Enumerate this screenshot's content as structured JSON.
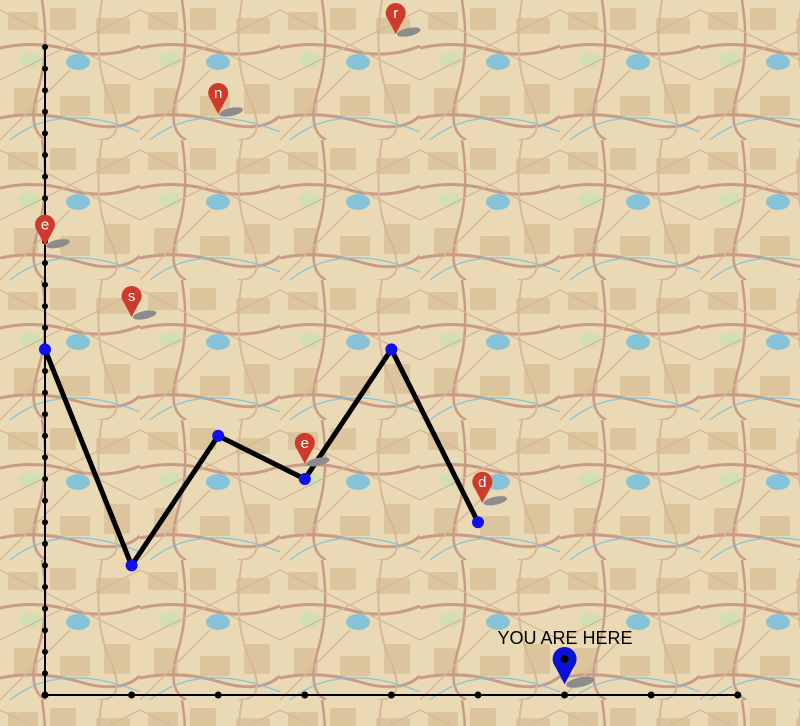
{
  "map": {
    "here_label": "YOU ARE HERE",
    "colors": {
      "background": "#e9d9b4",
      "road_major": "#c99a86",
      "road_minor": "#d7b797",
      "water": "#86c3d8",
      "park": "#cfe0b2",
      "block": "#dcc59c",
      "axis": "#000000",
      "route_line": "#000000",
      "route_point": "#1010ee",
      "marker_red": "#cf3a2a",
      "marker_blue": "#0b12d8",
      "marker_shadow": "#8c8c8c"
    },
    "axes": {
      "x_ticks": [
        0,
        1,
        2,
        3,
        4,
        5,
        6,
        7,
        8
      ],
      "y_ticks": [
        0,
        1,
        2,
        3,
        4,
        5,
        6,
        7,
        8,
        9,
        10,
        11,
        12,
        13,
        14,
        15,
        16,
        17,
        18,
        19,
        20,
        21,
        22,
        23,
        24,
        25,
        26,
        27,
        28,
        29,
        30
      ]
    },
    "route": [
      {
        "x": 0,
        "y": 16
      },
      {
        "x": 1,
        "y": 6
      },
      {
        "x": 2,
        "y": 12
      },
      {
        "x": 3,
        "y": 10
      },
      {
        "x": 4,
        "y": 16
      },
      {
        "x": 5,
        "y": 8
      }
    ],
    "letter_markers": [
      {
        "letter": "r",
        "x": 4.05,
        "y": 30.6
      },
      {
        "letter": "n",
        "x": 2.0,
        "y": 26.9
      },
      {
        "letter": "e",
        "x": 0.0,
        "y": 20.8
      },
      {
        "letter": "s",
        "x": 1.0,
        "y": 17.5
      },
      {
        "letter": "e",
        "x": 3.0,
        "y": 10.7
      },
      {
        "letter": "d",
        "x": 5.05,
        "y": 8.9
      }
    ],
    "here_marker": {
      "x": 6.0,
      "y": 0.5
    }
  }
}
